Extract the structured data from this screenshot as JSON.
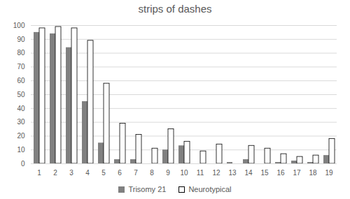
{
  "chart_data": {
    "type": "bar",
    "title": "strips of dashes",
    "categories": [
      1,
      2,
      3,
      4,
      5,
      6,
      7,
      8,
      9,
      10,
      11,
      12,
      13,
      14,
      15,
      16,
      17,
      18,
      19
    ],
    "series": [
      {
        "name": "Trisomy 21",
        "color": "#808080",
        "values": [
          95,
          94,
          84,
          45,
          15,
          3,
          3,
          0,
          10,
          13,
          0,
          0,
          1,
          3,
          0,
          1,
          2,
          1,
          6
        ]
      },
      {
        "name": "Neurotypical",
        "color": "#ffffff",
        "values": [
          98,
          99,
          98,
          89,
          58,
          29,
          21,
          11,
          25,
          16,
          9,
          14,
          0,
          13,
          11,
          7,
          5,
          6,
          18
        ]
      }
    ],
    "ylim": [
      0,
      100
    ],
    "yticks": [
      0,
      10,
      20,
      30,
      40,
      50,
      60,
      70,
      80,
      90,
      100
    ],
    "grid": true,
    "legend": "bottom"
  }
}
